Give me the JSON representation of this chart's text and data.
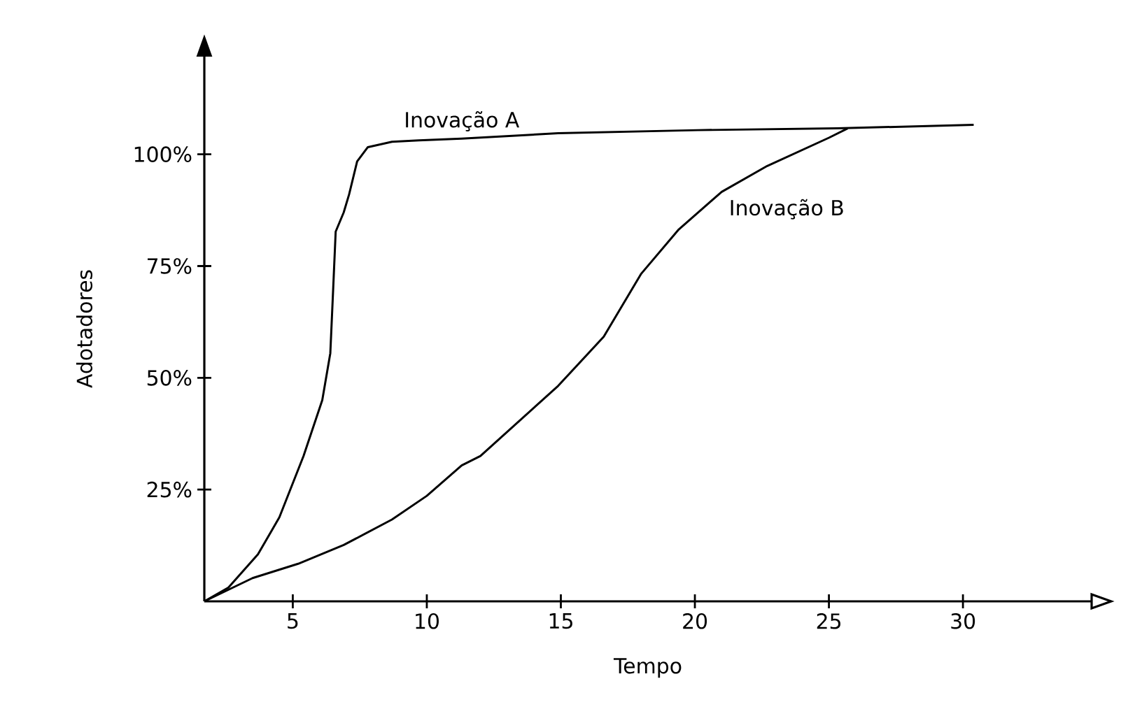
{
  "chart_data": {
    "type": "line",
    "xlabel": "Tempo",
    "ylabel": "Adotadores",
    "xlim": [
      1.7,
      34.8
    ],
    "ylim": [
      0,
      122
    ],
    "xticks": [
      5,
      10,
      15,
      20,
      25,
      30
    ],
    "yticks": [
      {
        "value": 25,
        "label": "25%"
      },
      {
        "value": 50,
        "label": "50%"
      },
      {
        "value": 75,
        "label": "75%"
      },
      {
        "value": 100,
        "label": "100%"
      }
    ],
    "series": [
      {
        "name": "Inovação A",
        "color": "#000000",
        "x": [
          1.7,
          2.6,
          3.7,
          4.5,
          5.4,
          6.1,
          6.4,
          6.5,
          6.6,
          6.9,
          7.1,
          7.4,
          7.8,
          8.7,
          9.7,
          11.3,
          14.9,
          20.1,
          25.3,
          30.4
        ],
        "values": [
          0,
          3.1,
          10.5,
          18.8,
          32.5,
          45,
          55.5,
          69,
          82.7,
          87,
          91,
          98.4,
          101.6,
          102.8,
          103.1,
          103.5,
          104.7,
          105.4,
          105.8,
          106.6
        ]
      },
      {
        "name": "Inovação B",
        "color": "#000000",
        "x": [
          1.7,
          3.5,
          5.2,
          6.9,
          8.7,
          10.0,
          11.3,
          12.0,
          14.9,
          16.6,
          18.0,
          19.4,
          21.0,
          22.7,
          25.0,
          25.7
        ],
        "values": [
          0,
          5.2,
          8.4,
          12.6,
          18.3,
          23.6,
          30.4,
          32.5,
          48.2,
          59.2,
          73.3,
          83.2,
          91.6,
          97.4,
          103.7,
          105.8
        ]
      }
    ]
  }
}
